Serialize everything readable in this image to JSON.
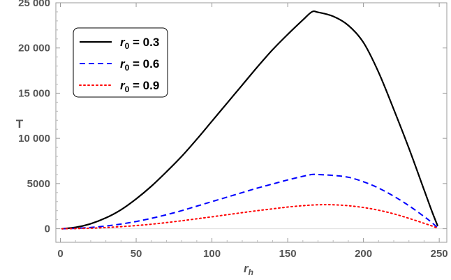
{
  "chart_data": {
    "type": "line",
    "xlabel": "r_h",
    "xlabel_main": "r",
    "xlabel_sub": "h",
    "ylabel": "T",
    "xlim": [
      -3,
      255
    ],
    "ylim": [
      -1500,
      25000
    ],
    "x_ticks": [
      0,
      50,
      100,
      150,
      200,
      250
    ],
    "x_tick_labels": [
      "0",
      "50",
      "100",
      "150",
      "200",
      "250"
    ],
    "y_ticks": [
      0,
      5000,
      10000,
      15000,
      20000,
      25000
    ],
    "y_tick_labels": [
      "0",
      "5000",
      "10 000",
      "15 000",
      "20 000",
      "25 000"
    ],
    "legend_position": "top-left",
    "series": [
      {
        "name": "r_0 = 0.3",
        "legend_main": "r",
        "legend_sub": "0",
        "legend_value": " = 0.3",
        "color": "#000000",
        "style": "solid",
        "x": [
          1,
          10,
          20,
          30,
          40,
          50,
          60,
          70,
          80,
          90,
          100,
          110,
          120,
          130,
          140,
          150,
          160,
          166,
          170,
          180,
          190,
          200,
          210,
          220,
          230,
          240,
          245,
          249
        ],
        "y": [
          0,
          150,
          550,
          1200,
          2100,
          3300,
          4700,
          6300,
          8000,
          9900,
          11900,
          13900,
          15900,
          17900,
          19800,
          21500,
          23100,
          24000,
          23950,
          23500,
          22500,
          20600,
          17300,
          13200,
          8900,
          4300,
          2000,
          300
        ]
      },
      {
        "name": "r_0 = 0.6",
        "legend_main": "r",
        "legend_sub": "0",
        "legend_value": " = 0.6",
        "color": "#0000ff",
        "style": "dashed",
        "x": [
          1,
          10,
          20,
          30,
          40,
          50,
          60,
          70,
          80,
          90,
          100,
          110,
          120,
          130,
          140,
          150,
          160,
          166,
          170,
          180,
          190,
          200,
          210,
          220,
          230,
          240,
          245,
          249
        ],
        "y": [
          0,
          40,
          140,
          300,
          520,
          800,
          1150,
          1550,
          2000,
          2500,
          3000,
          3500,
          4000,
          4500,
          4950,
          5400,
          5800,
          6000,
          6000,
          5900,
          5700,
          5200,
          4500,
          3600,
          2550,
          1350,
          700,
          100
        ]
      },
      {
        "name": "r_0 = 0.9",
        "legend_main": "r",
        "legend_sub": "0",
        "legend_value": " = 0.9",
        "color": "#ff0000",
        "style": "dotted",
        "x": [
          1,
          10,
          20,
          30,
          40,
          50,
          60,
          70,
          80,
          90,
          100,
          110,
          120,
          130,
          140,
          150,
          160,
          170,
          180,
          190,
          200,
          210,
          220,
          230,
          240,
          245,
          249
        ],
        "y": [
          0,
          20,
          60,
          130,
          230,
          350,
          500,
          680,
          880,
          1100,
          1320,
          1550,
          1780,
          2000,
          2200,
          2400,
          2550,
          2650,
          2650,
          2550,
          2350,
          2050,
          1650,
          1150,
          600,
          320,
          50
        ]
      }
    ]
  }
}
